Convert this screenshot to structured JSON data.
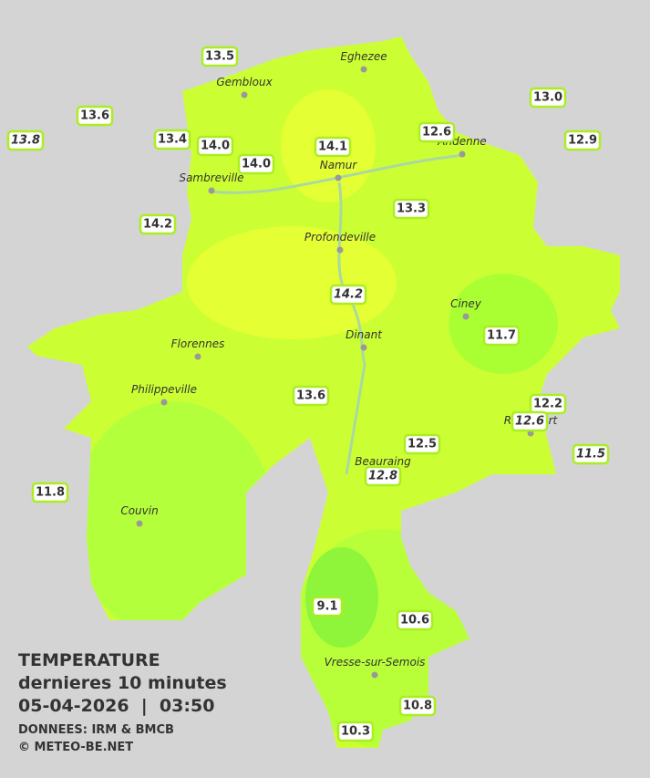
{
  "legend": {
    "title": "TEMPERATURE",
    "subtitle": "dernieres 10 minutes",
    "datetime": "05-04-2026  |  03:50",
    "source": "DONNEES: IRM & BMCB",
    "copyright": "© METEO-BE.NET"
  },
  "cities": [
    "Eghezee",
    "Gembloux",
    "Andenne",
    "Namur",
    "Sambreville",
    "Profondeville",
    "Ciney",
    "Dinant",
    "Florennes",
    "Philippeville",
    "Beauraing",
    "Rochefort",
    "Couvin",
    "Vresse-sur-Semois"
  ],
  "stations": [
    {
      "value": "13.5",
      "italic": false
    },
    {
      "value": "13.6",
      "italic": false
    },
    {
      "value": "13.8",
      "italic": true
    },
    {
      "value": "13.4",
      "italic": false
    },
    {
      "value": "14.0",
      "italic": false
    },
    {
      "value": "14.0",
      "italic": false
    },
    {
      "value": "14.1",
      "italic": false
    },
    {
      "value": "12.6",
      "italic": false
    },
    {
      "value": "13.0",
      "italic": false
    },
    {
      "value": "12.9",
      "italic": false
    },
    {
      "value": "14.2",
      "italic": false
    },
    {
      "value": "13.3",
      "italic": false
    },
    {
      "value": "14.2",
      "italic": true
    },
    {
      "value": "11.7",
      "italic": false
    },
    {
      "value": "13.6",
      "italic": false
    },
    {
      "value": "12.2",
      "italic": false
    },
    {
      "value": "12.6",
      "italic": true
    },
    {
      "value": "12.5",
      "italic": false
    },
    {
      "value": "11.5",
      "italic": true
    },
    {
      "value": "12.8",
      "italic": true
    },
    {
      "value": "11.8",
      "italic": false
    },
    {
      "value": "9.1",
      "italic": false
    },
    {
      "value": "10.6",
      "italic": false
    },
    {
      "value": "10.8",
      "italic": false
    },
    {
      "value": "10.3",
      "italic": false
    }
  ]
}
